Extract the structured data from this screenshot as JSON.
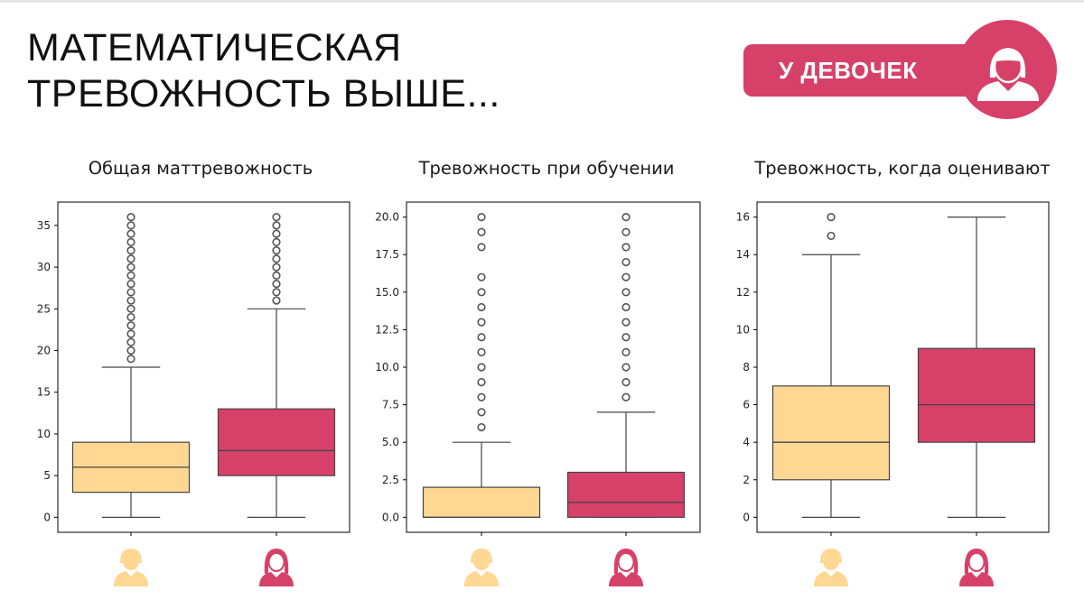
{
  "slide": {
    "title_line1": "МАТЕМАТИЧЕСКАЯ",
    "title_line2": "ТРЕВОЖНОСТЬ ВЫШЕ...",
    "badge_label": "У ДЕВОЧЕК",
    "badge_icon": "girl-avatar-icon"
  },
  "colors": {
    "boys": "#fed893",
    "girls": "#d74169",
    "badge": "#d74169",
    "outline": "#444444"
  },
  "legend_icons": [
    "boy-avatar-icon",
    "girl-avatar-icon"
  ],
  "chart_data": [
    {
      "type": "box",
      "title": "Общая маттревожность",
      "ylim": [
        -1.8,
        37.8
      ],
      "yticks": [
        0,
        5,
        10,
        15,
        20,
        25,
        30,
        35
      ],
      "ytick_labels": [
        "0",
        "5",
        "10",
        "15",
        "20",
        "25",
        "30",
        "35"
      ],
      "grid": false,
      "series": [
        {
          "group": "boys",
          "min": 0,
          "q1": 3,
          "median": 6,
          "q3": 9,
          "max": 18,
          "outliers": [
            19,
            20,
            21,
            22,
            23,
            24,
            25,
            26,
            27,
            28,
            29,
            30,
            31,
            32,
            33,
            34,
            35,
            36
          ]
        },
        {
          "group": "girls",
          "min": 0,
          "q1": 5,
          "median": 8,
          "q3": 13,
          "max": 25,
          "outliers": [
            26,
            27,
            28,
            29,
            30,
            31,
            32,
            33,
            34,
            35,
            36
          ]
        }
      ]
    },
    {
      "type": "box",
      "title": "Тревожность при обучении",
      "ylim": [
        -1.0,
        21.0
      ],
      "yticks": [
        0,
        2.5,
        5,
        7.5,
        10,
        12.5,
        15,
        17.5,
        20
      ],
      "ytick_labels": [
        "0.0",
        "2.5",
        "5.0",
        "7.5",
        "10.0",
        "12.5",
        "15.0",
        "17.5",
        "20.0"
      ],
      "grid": false,
      "series": [
        {
          "group": "boys",
          "min": 0,
          "q1": 0,
          "median": 0,
          "q3": 2,
          "max": 5,
          "outliers": [
            6,
            7,
            8,
            9,
            10,
            11,
            12,
            13,
            14,
            15,
            16,
            18,
            19,
            20
          ]
        },
        {
          "group": "girls",
          "min": 0,
          "q1": 0,
          "median": 1,
          "q3": 3,
          "max": 7,
          "outliers": [
            8,
            9,
            10,
            11,
            12,
            13,
            14,
            15,
            16,
            17,
            18,
            19,
            20
          ]
        }
      ]
    },
    {
      "type": "box",
      "title": "Тревожность, когда оценивают",
      "ylim": [
        -0.8,
        16.8
      ],
      "yticks": [
        0,
        2,
        4,
        6,
        8,
        10,
        12,
        14,
        16
      ],
      "ytick_labels": [
        "0",
        "2",
        "4",
        "6",
        "8",
        "10",
        "12",
        "14",
        "16"
      ],
      "grid": false,
      "series": [
        {
          "group": "boys",
          "min": 0,
          "q1": 2,
          "median": 4,
          "q3": 7,
          "max": 14,
          "outliers": [
            15,
            16
          ]
        },
        {
          "group": "girls",
          "min": 0,
          "q1": 4,
          "median": 6,
          "q3": 9,
          "max": 16,
          "outliers": []
        }
      ]
    }
  ]
}
